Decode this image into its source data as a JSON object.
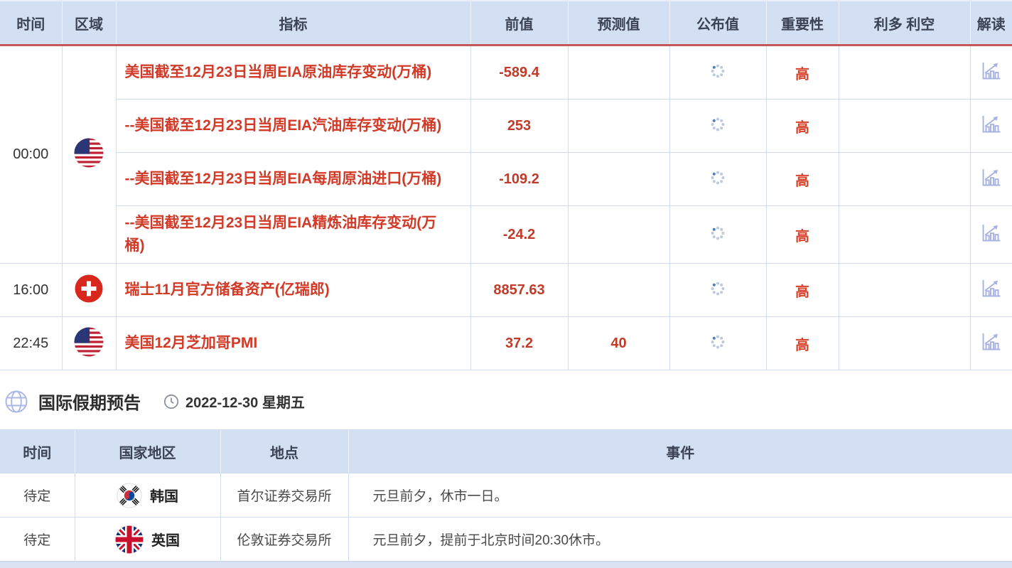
{
  "colors": {
    "header_bg": "#d3e0f4",
    "header_text": "#3b4354",
    "header_underline_red": "#c25b58",
    "table_border": "#cfdcef",
    "indicator_red": "#d23a28",
    "value_red": "#c23a28",
    "importance_red": "#d8432c",
    "icon_periwinkle": "#a9b3e2",
    "body_text": "#333333"
  },
  "icons": {
    "region_flags": [
      "flag-usa-icon",
      "flag-switzerland-icon",
      "flag-south-korea-icon",
      "flag-uk-icon"
    ],
    "announced_placeholder": "loading-spinner-icon",
    "interpretation": "chart-interpretation-icon",
    "section": [
      "globe-icon",
      "clock-icon"
    ]
  },
  "calendar_table": {
    "headers": [
      "时间",
      "区域",
      "指标",
      "前值",
      "预测值",
      "公布值",
      "重要性",
      "利多 利空",
      "解读"
    ],
    "groups": [
      {
        "time": "00:00",
        "flag": "us",
        "rows": [
          {
            "indicator": "美国截至12月23日当周EIA原油库存变动(万桶)",
            "previous": "-589.4",
            "forecast": "",
            "announced": "loading",
            "importance": "高",
            "bias": ""
          },
          {
            "indicator": "--美国截至12月23日当周EIA汽油库存变动(万桶)",
            "previous": "253",
            "forecast": "",
            "announced": "loading",
            "importance": "高",
            "bias": ""
          },
          {
            "indicator": "--美国截至12月23日当周EIA每周原油进口(万桶)",
            "previous": "-109.2",
            "forecast": "",
            "announced": "loading",
            "importance": "高",
            "bias": ""
          },
          {
            "indicator": "--美国截至12月23日当周EIA精炼油库存变动(万桶)",
            "previous": "-24.2",
            "forecast": "",
            "announced": "loading",
            "importance": "高",
            "bias": "",
            "wrap": true
          }
        ]
      },
      {
        "time": "16:00",
        "flag": "ch",
        "rows": [
          {
            "indicator": "瑞士11月官方储备资产(亿瑞郎)",
            "previous": "8857.63",
            "forecast": "",
            "announced": "loading",
            "importance": "高",
            "bias": ""
          }
        ]
      },
      {
        "time": "22:45",
        "flag": "us",
        "rows": [
          {
            "indicator": "美国12月芝加哥PMI",
            "previous": "37.2",
            "forecast": "40",
            "announced": "loading",
            "importance": "高",
            "bias": ""
          }
        ]
      }
    ]
  },
  "holiday_section": {
    "title": "国际假期预告",
    "date": "2022-12-30 星期五"
  },
  "holiday_table": {
    "headers": [
      "时间",
      "国家地区",
      "地点",
      "事件"
    ],
    "rows": [
      {
        "time": "待定",
        "flag": "kr",
        "country": "韩国",
        "location": "首尔证券交易所",
        "event": "元旦前夕，休市一日。"
      },
      {
        "time": "待定",
        "flag": "gb",
        "country": "英国",
        "location": "伦敦证券交易所",
        "event": "元旦前夕，提前于北京时间20:30休市。"
      }
    ]
  }
}
